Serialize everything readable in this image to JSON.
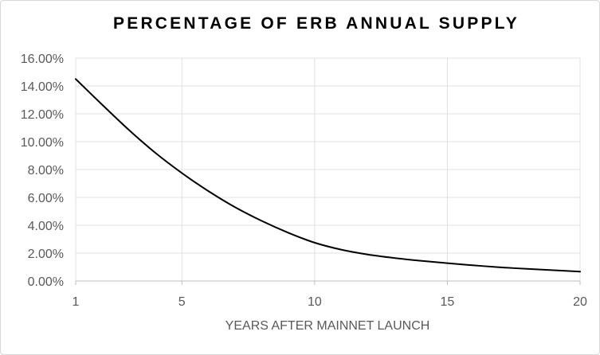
{
  "chart_data": {
    "type": "line",
    "title": "PERCENTAGE OF ERB ANNUAL SUPPLY",
    "xlabel": "YEARS AFTER MAINNET LAUNCH",
    "ylabel": "",
    "xlim": [
      1,
      20
    ],
    "ylim": [
      0,
      0.16
    ],
    "x_ticks": [
      1,
      5,
      10,
      15,
      20
    ],
    "y_ticks": [
      "0.00%",
      "2.00%",
      "4.00%",
      "6.00%",
      "8.00%",
      "10.00%",
      "12.00%",
      "14.00%",
      "16.00%"
    ],
    "grid": true,
    "legend": "none",
    "line_color": "#000000",
    "series": [
      {
        "x": [
          1,
          2,
          3,
          4,
          5,
          6,
          7,
          8,
          9,
          10,
          11,
          12,
          13,
          14,
          15,
          16,
          17,
          18,
          19,
          20
        ],
        "values": [
          0.145,
          0.1265,
          0.1085,
          0.092,
          0.0775,
          0.0645,
          0.053,
          0.0432,
          0.0347,
          0.0275,
          0.0225,
          0.019,
          0.0165,
          0.0145,
          0.0128,
          0.0112,
          0.0098,
          0.0087,
          0.0077,
          0.0067
        ]
      }
    ]
  }
}
